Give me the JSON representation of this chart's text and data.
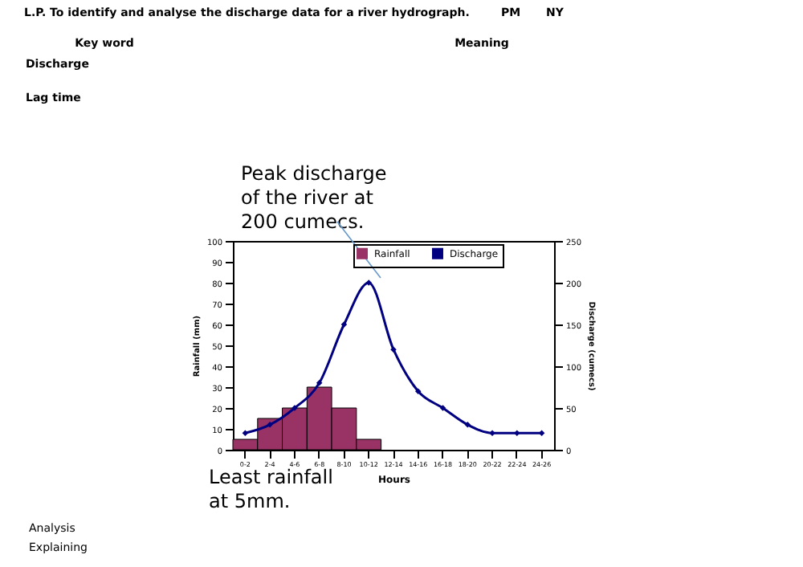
{
  "chart_data": {
    "type": "bar",
    "title": "L.P. To identify and analyse the discharge data for a river hydrograph.",
    "categories": [
      "0-2",
      "2-4",
      "4-6",
      "6-8",
      "8-10",
      "10-12",
      "12-14",
      "14-16",
      "16-18",
      "18-20",
      "20-22",
      "22-24",
      "24-26"
    ],
    "series": [
      {
        "name": "Rainfall",
        "color": "#993366",
        "values": [
          5,
          15,
          20,
          30,
          20,
          5,
          null,
          null,
          null,
          null,
          null,
          null,
          null
        ]
      },
      {
        "name": "Discharge",
        "type": "line",
        "axis": "y2",
        "color": "#000080",
        "marker": "diamond",
        "values": [
          20,
          30,
          50,
          80,
          150,
          200,
          120,
          70,
          50,
          30,
          20,
          20,
          20
        ]
      }
    ],
    "xlabel": "Hours",
    "ylabel": "Rainfall (mm)",
    "y2label": "Discharge (cumecs)",
    "ylim": [
      0,
      100
    ],
    "yticks": [
      0,
      10,
      20,
      30,
      40,
      50,
      60,
      70,
      80,
      90,
      100
    ],
    "y2lim": [
      0,
      250
    ],
    "y2ticks": [
      0,
      50,
      100,
      150,
      200,
      250
    ],
    "legend": "top",
    "grid": false,
    "annotations": [
      "PM",
      "NY",
      "Key word",
      "Meaning",
      "Discharge",
      "Lag time",
      "Peak discharge of the river at 200 cumecs.",
      "Least rainfall at 5mm.",
      "Analysis",
      "Explaining"
    ]
  }
}
